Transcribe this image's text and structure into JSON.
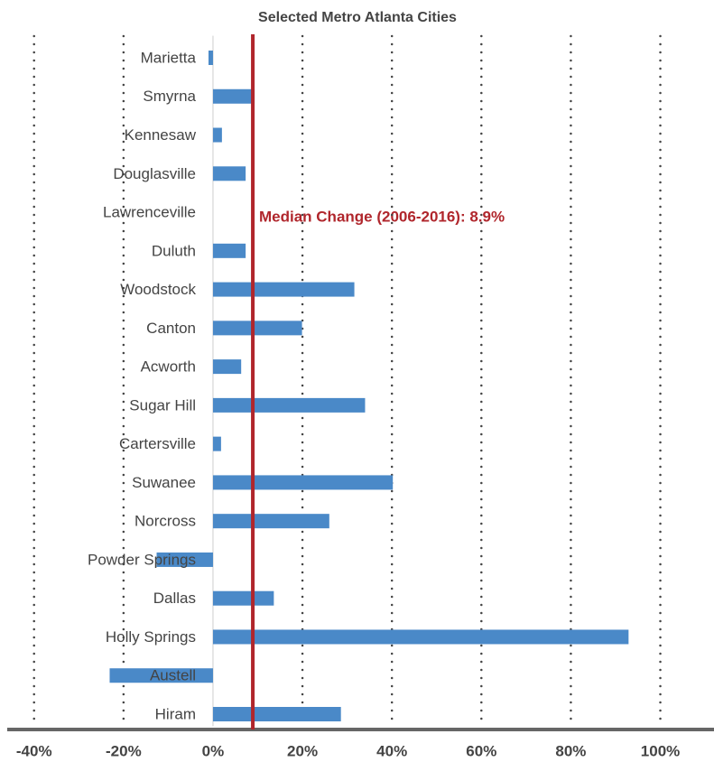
{
  "chart_data": {
    "type": "barh",
    "title": "Selected Metro Atlanta Cities",
    "categories": [
      "Marietta",
      "Smyrna",
      "Kennesaw",
      "Douglasville",
      "Lawrenceville",
      "Duluth",
      "Woodstock",
      "Canton",
      "Acworth",
      "Sugar Hill",
      "Cartersville",
      "Suwanee",
      "Norcross",
      "Powder Springs",
      "Dallas",
      "Holly Springs",
      "Austell",
      "Hiram"
    ],
    "values": [
      -1,
      9.3,
      2,
      7.3,
      0,
      7.3,
      31.6,
      19.9,
      6.3,
      34,
      1.8,
      40.2,
      26,
      -12.6,
      13.6,
      92.9,
      -23.1,
      28.6
    ],
    "color": "#4a89c8",
    "xlim": [
      -46,
      112
    ],
    "xticks": [
      {
        "value": -40,
        "label": "-40%"
      },
      {
        "value": -20,
        "label": "-20%"
      },
      {
        "value": 0,
        "label": "0%"
      },
      {
        "value": 20,
        "label": "20%"
      },
      {
        "value": 40,
        "label": "40%"
      },
      {
        "value": 60,
        "label": "60%"
      },
      {
        "value": 80,
        "label": "80%"
      },
      {
        "value": 100,
        "label": "100%"
      }
    ],
    "grid": true,
    "median": 8.9,
    "median_color": "#b0262c",
    "annotation": "Median Change (2006-2016): 8.9%"
  }
}
